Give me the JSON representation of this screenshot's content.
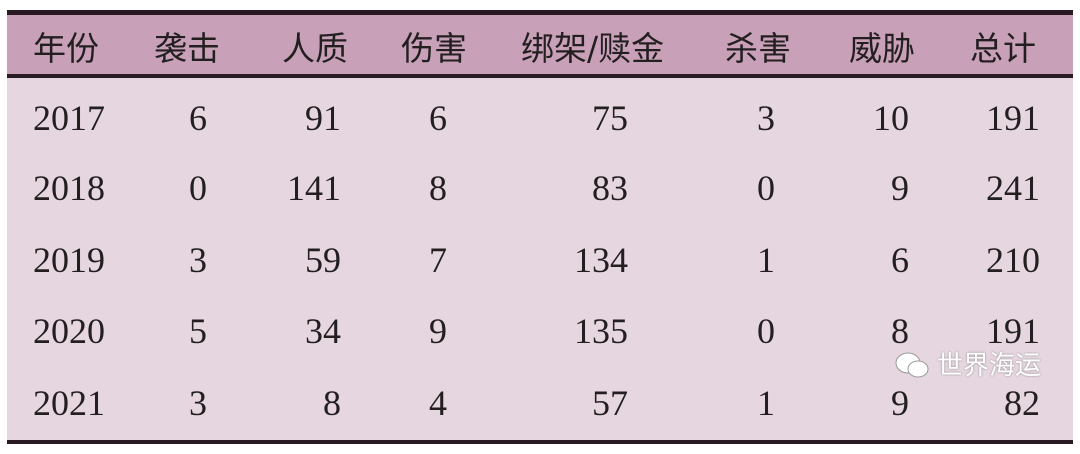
{
  "table": {
    "headers": [
      "年份",
      "袭击",
      "人质",
      "伤害",
      "绑架/赎金",
      "杀害",
      "威胁",
      "总计"
    ],
    "rows": [
      [
        "2017",
        "6",
        "91",
        "6",
        "75",
        "3",
        "10",
        "191"
      ],
      [
        "2018",
        "0",
        "141",
        "8",
        "83",
        "0",
        "9",
        "241"
      ],
      [
        "2019",
        "3",
        "59",
        "7",
        "134",
        "1",
        "6",
        "210"
      ],
      [
        "2020",
        "5",
        "34",
        "9",
        "135",
        "0",
        "8",
        "191"
      ],
      [
        "2021",
        "3",
        "8",
        "4",
        "57",
        "1",
        "9",
        "82"
      ]
    ]
  },
  "watermark": {
    "text": "世界海运",
    "icon": "wechat-icon"
  },
  "colors": {
    "header_bg": "#c8a0b8",
    "body_bg": "#e6d6e0",
    "rule": "#2a1a24"
  }
}
